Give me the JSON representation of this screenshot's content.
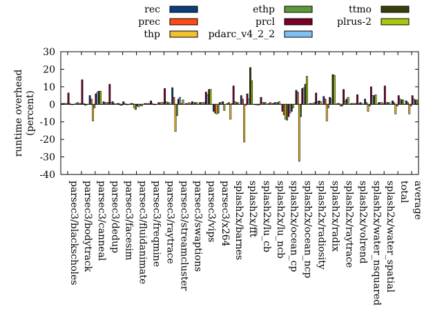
{
  "chart_data": {
    "type": "bar",
    "ylabel": "runtime overhead\n(percent)",
    "ylim": [
      -40,
      30
    ],
    "yticks": [
      -40,
      -30,
      -20,
      -10,
      0,
      10,
      20,
      30
    ],
    "legend_placement": "top, outside",
    "categories": [
      "parsec3/blackscholes",
      "parsec3/bodytrack",
      "parsec3/canneal",
      "parsec3/dedup",
      "parsec3/facesim",
      "parsec3/fluidanimate",
      "parsec3/freqmine",
      "parsec3/raytrace",
      "parsec3/streamcluster",
      "parsec3/swaptions",
      "parsec3/vips",
      "parsec3/x264",
      "splash2x/barnes",
      "splash2x/fft",
      "splash2x/lu_cb",
      "splash2x/lu_ncb",
      "splash2x/ocean_cp",
      "splash2x/ocean_ncp",
      "splash2x/radiosity",
      "splash2x/radix",
      "splash2x/raytrace",
      "splash2x/volrend",
      "splash2x/water_nsquared",
      "splash2x/water_spatial",
      "total",
      "average"
    ],
    "series": [
      {
        "name": "rec",
        "color": "#0b3e7a",
        "values": [
          0.5,
          0.5,
          5,
          1.5,
          0.5,
          0.5,
          0.5,
          1,
          9.5,
          0.5,
          1,
          -4,
          0.5,
          5,
          0,
          0.5,
          -4,
          8,
          0.5,
          4.5,
          0.5,
          0.5,
          3,
          1,
          2,
          2
        ]
      },
      {
        "name": "prec",
        "color": "#ff4a12",
        "values": [
          0.5,
          1,
          3,
          1,
          0.5,
          0.5,
          0.5,
          1,
          4,
          0.5,
          1,
          -5,
          1,
          3,
          0,
          1,
          -6,
          7,
          0.5,
          3,
          0.5,
          0.5,
          1,
          1,
          1,
          1
        ]
      },
      {
        "name": "thp",
        "color": "#f2c12e",
        "values": [
          0.5,
          0.5,
          -9.5,
          1,
          -0.5,
          -2,
          0.5,
          1,
          -15.5,
          1,
          1,
          -5.5,
          -8.5,
          -21.5,
          -0.5,
          0.5,
          -8.5,
          -32.5,
          0.5,
          -9.5,
          -1,
          0.5,
          -4,
          1,
          -5.5,
          -5.5
        ]
      },
      {
        "name": "ethp",
        "color": "#5b9a3a",
        "values": [
          0.5,
          0.5,
          -2,
          1,
          -0.5,
          -3,
          0.5,
          1,
          -6.5,
          0.5,
          1,
          -5,
          0.5,
          -0.5,
          0,
          0.5,
          -9,
          -7,
          1,
          -2,
          -1,
          0.5,
          -1,
          0.5,
          -1,
          -1
        ]
      },
      {
        "name": "prcl",
        "color": "#7a0026",
        "values": [
          6.5,
          14,
          6,
          11.5,
          1.5,
          -1,
          2,
          9,
          3,
          1.5,
          7,
          1,
          10.5,
          6,
          4,
          1,
          -7,
          9,
          6.5,
          4,
          8.5,
          5.5,
          10,
          10.5,
          5,
          5
        ]
      },
      {
        "name": "pdarc_v4_2_2",
        "color": "#80c0f0",
        "values": [
          0.5,
          0.5,
          7,
          1,
          0.5,
          -1.5,
          0.5,
          1.5,
          4,
          1,
          5.5,
          1,
          1.5,
          3,
          1,
          1,
          -5,
          9.5,
          1.5,
          3,
          2,
          0.5,
          5,
          1,
          3,
          3
        ]
      },
      {
        "name": "ttmo",
        "color": "#3a3f0a",
        "values": [
          0,
          -0.5,
          7.5,
          1.5,
          0,
          -0.5,
          0,
          1,
          0.5,
          1,
          8.5,
          1.5,
          1,
          21,
          1,
          1,
          -4,
          11.5,
          2,
          17,
          3,
          1,
          5,
          1,
          2.5,
          2.5
        ]
      },
      {
        "name": "plrus-2",
        "color": "#a8c80e",
        "values": [
          0,
          0,
          7.5,
          0.5,
          0,
          -1,
          0,
          1,
          2.5,
          1,
          8.5,
          -3.5,
          1,
          13.5,
          1,
          1.5,
          -2,
          16,
          1.5,
          16.5,
          4,
          0.5,
          5.5,
          1,
          2.5,
          2.5
        ]
      }
    ]
  }
}
